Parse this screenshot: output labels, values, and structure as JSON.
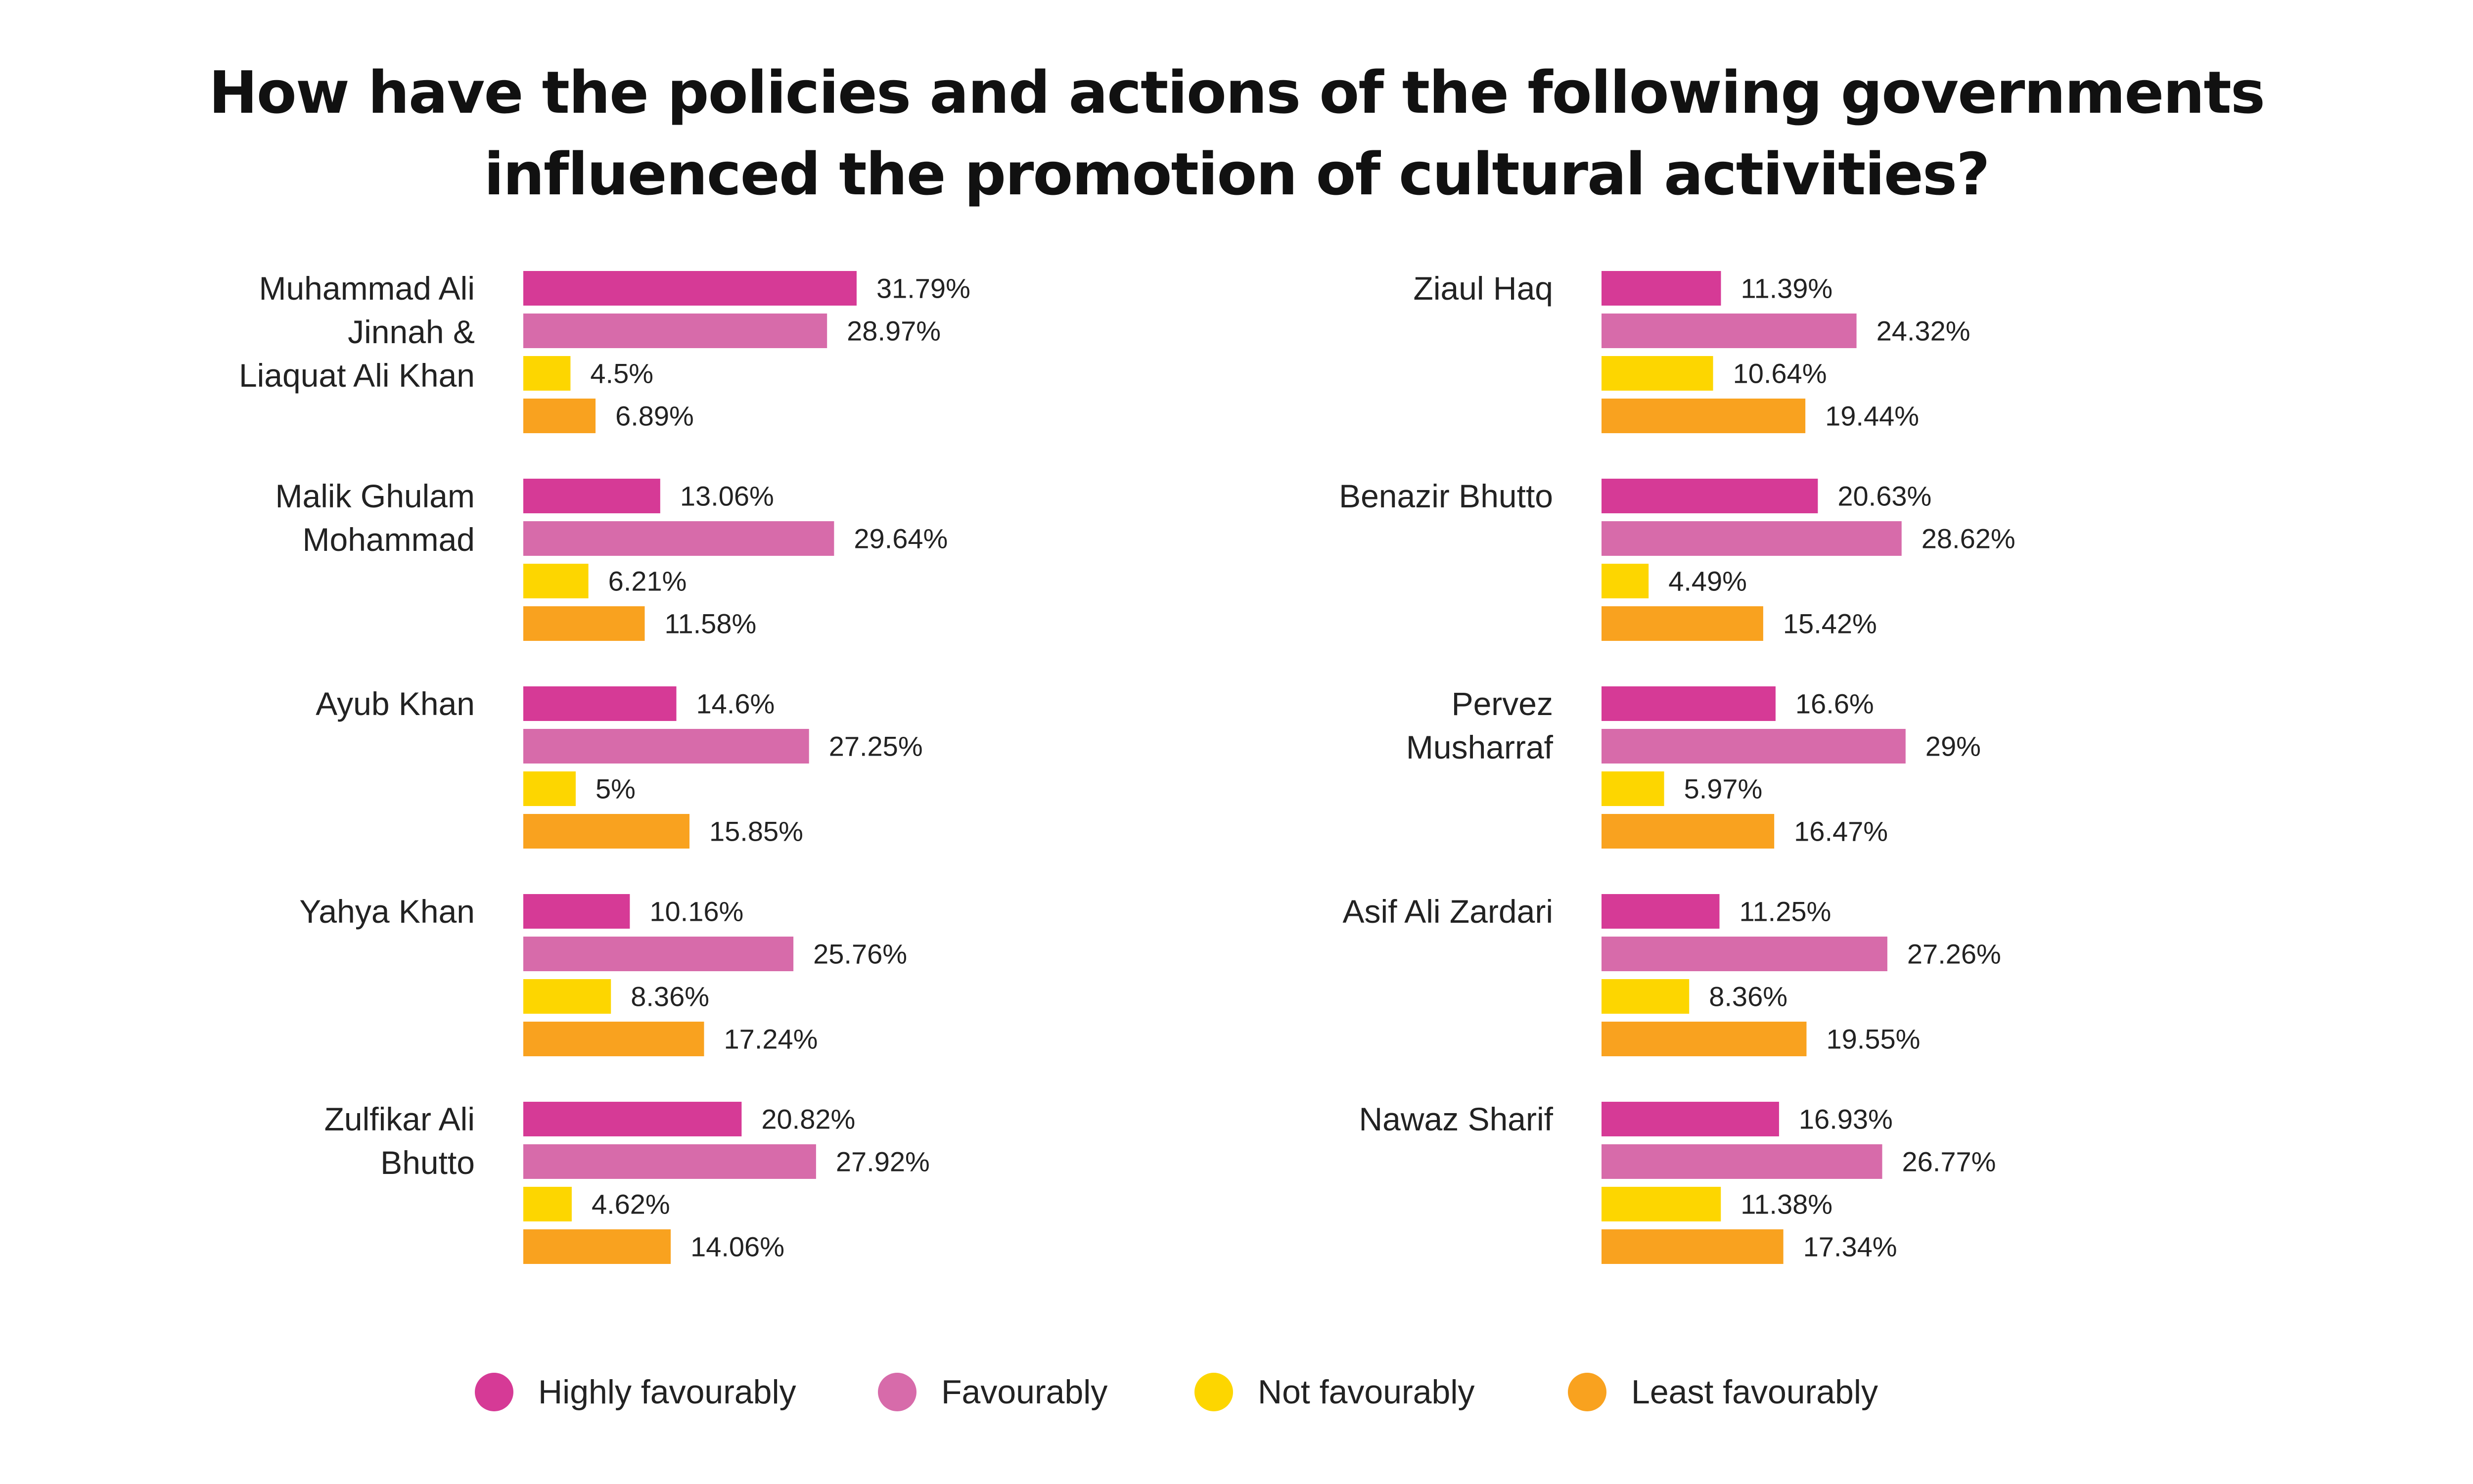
{
  "chart_data": {
    "type": "bar",
    "orientation": "horizontal",
    "title": [
      "How have the policies and actions of the following governments",
      "influenced the promotion of cultural activities?"
    ],
    "legend_position": "bottom",
    "grid": false,
    "series": [
      {
        "name": "Highly favourably",
        "color": "#d63a96"
      },
      {
        "name": "Favourably",
        "color": "#d76baa"
      },
      {
        "name": "Not favourably",
        "color": "#fdd600"
      },
      {
        "name": "Least favourably",
        "color": "#f9a21f"
      }
    ],
    "panels": [
      {
        "groups": [
          {
            "label": [
              "Muhammad Ali",
              "Jinnah &",
              "Liaquat Ali Khan"
            ],
            "values": [
              31.79,
              28.97,
              4.5,
              6.89
            ],
            "value_labels": [
              "31.79%",
              "28.97%",
              "4.5%",
              "6.89%"
            ]
          },
          {
            "label": [
              "Malik Ghulam",
              "Mohammad"
            ],
            "values": [
              13.06,
              29.64,
              6.21,
              11.58
            ],
            "value_labels": [
              "13.06%",
              "29.64%",
              "6.21%",
              "11.58%"
            ]
          },
          {
            "label": [
              "Ayub Khan"
            ],
            "values": [
              14.6,
              27.25,
              5,
              15.85
            ],
            "value_labels": [
              "14.6%",
              "27.25%",
              "5%",
              "15.85%"
            ]
          },
          {
            "label": [
              "Yahya Khan"
            ],
            "values": [
              10.16,
              25.76,
              8.36,
              17.24
            ],
            "value_labels": [
              "10.16%",
              "25.76%",
              "8.36%",
              "17.24%"
            ]
          },
          {
            "label": [
              "Zulfikar Ali",
              "Bhutto"
            ],
            "values": [
              20.82,
              27.92,
              4.62,
              14.06
            ],
            "value_labels": [
              "20.82%",
              "27.92%",
              "4.62%",
              "14.06%"
            ]
          }
        ]
      },
      {
        "groups": [
          {
            "label": [
              "Ziaul Haq"
            ],
            "values": [
              11.39,
              24.32,
              10.64,
              19.44
            ],
            "value_labels": [
              "11.39%",
              "24.32%",
              "10.64%",
              "19.44%"
            ]
          },
          {
            "label": [
              "Benazir Bhutto"
            ],
            "values": [
              20.63,
              28.62,
              4.49,
              15.42
            ],
            "value_labels": [
              "20.63%",
              "28.62%",
              "4.49%",
              "15.42%"
            ]
          },
          {
            "label": [
              "Pervez",
              "Musharraf"
            ],
            "values": [
              16.6,
              29,
              5.97,
              16.47
            ],
            "value_labels": [
              "16.6%",
              "29%",
              "5.97%",
              "16.47%"
            ]
          },
          {
            "label": [
              "Asif Ali Zardari"
            ],
            "values": [
              11.25,
              27.26,
              8.36,
              19.55
            ],
            "value_labels": [
              "11.25%",
              "27.26%",
              "8.36%",
              "19.55%"
            ]
          },
          {
            "label": [
              "Nawaz Sharif"
            ],
            "values": [
              16.93,
              26.77,
              11.38,
              17.34
            ],
            "value_labels": [
              "16.93%",
              "26.77%",
              "11.38%",
              "17.34%"
            ]
          }
        ]
      }
    ]
  }
}
